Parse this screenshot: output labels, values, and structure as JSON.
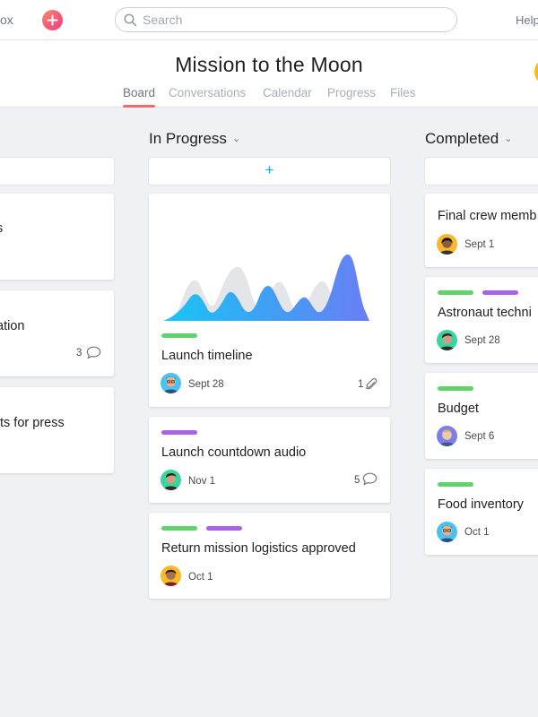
{
  "topbar": {
    "inbox_label": "ox",
    "search_placeholder": "Search",
    "help_label": "Help"
  },
  "project": {
    "title": "Mission to the Moon",
    "tabs": [
      {
        "label": "Board",
        "active": true
      },
      {
        "label": "Conversations",
        "active": false
      },
      {
        "label": "Calendar",
        "active": false
      },
      {
        "label": "Progress",
        "active": false
      },
      {
        "label": "Files",
        "active": false
      }
    ]
  },
  "columns": {
    "left": {
      "cards": [
        {
          "title": "s"
        },
        {
          "title": "ation",
          "comment_count": "3"
        },
        {
          "title": "ts for press"
        }
      ]
    },
    "in_progress": {
      "name": "In Progress",
      "add_label": "+",
      "cards": [
        {
          "title": "Launch timeline",
          "date": "Sept 28",
          "attachment_count": "1",
          "tags": [
            "green"
          ]
        },
        {
          "title": "Launch countdown audio",
          "date": "Nov 1",
          "comment_count": "5",
          "tags": [
            "purple"
          ]
        },
        {
          "title": "Return mission logistics approved",
          "date": "Oct 1",
          "tags": [
            "green",
            "purple"
          ]
        }
      ]
    },
    "completed": {
      "name": "Completed",
      "cards": [
        {
          "title": "Final crew memb",
          "date": "Sept 1",
          "tags": []
        },
        {
          "title": "Astronaut techni",
          "date": "Sept 28",
          "tags": [
            "green",
            "purple"
          ]
        },
        {
          "title": "Budget",
          "date": "Sept 6",
          "tags": [
            "green"
          ]
        },
        {
          "title": "Food inventory",
          "date": "Oct 1",
          "tags": [
            "green"
          ]
        }
      ]
    }
  },
  "colors": {
    "accent_coral": "#f06a6a",
    "tag_green": "#62d26f",
    "tag_purple": "#a862ea",
    "plus_blue": "#14aaf5"
  },
  "icons": [
    "plus-icon",
    "search-icon",
    "chevron-down-icon",
    "comment-icon",
    "paperclip-icon"
  ]
}
